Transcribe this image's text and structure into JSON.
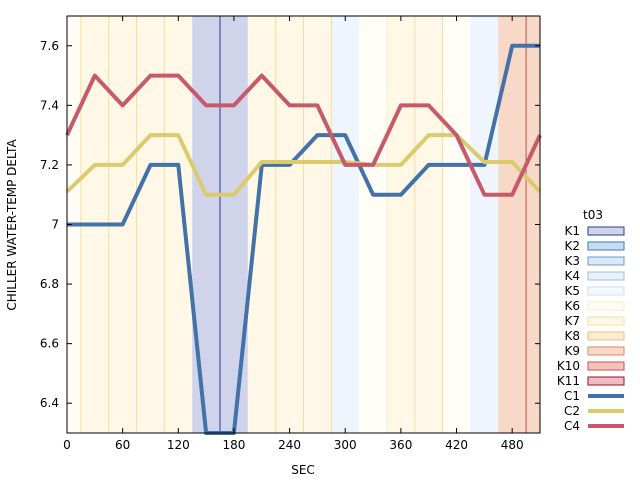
{
  "chart_data": {
    "type": "line",
    "xlabel": "SEC",
    "ylabel": "CHILLER WATER-TEMP DELTA",
    "xlim": [
      0,
      510
    ],
    "ylim": [
      6.3,
      7.7
    ],
    "x_ticks": [
      0,
      60,
      120,
      180,
      240,
      300,
      360,
      420,
      480
    ],
    "y_ticks": [
      {
        "v": 6.4,
        "label": "6.4"
      },
      {
        "v": 6.6,
        "label": "6.6"
      },
      {
        "v": 6.8,
        "label": "6.8"
      },
      {
        "v": 7.0,
        "label": "7"
      },
      {
        "v": 7.2,
        "label": "7.2"
      },
      {
        "v": 7.4,
        "label": "7.4"
      },
      {
        "v": 7.6,
        "label": "7.6"
      }
    ],
    "legend": {
      "title": "t03",
      "placement": "right",
      "bands": [
        {
          "name": "K1",
          "fill": "#cfd4ea",
          "stroke": "#2b3990"
        },
        {
          "name": "K2",
          "fill": "#c6ddf0",
          "stroke": "#3a7ab8"
        },
        {
          "name": "K3",
          "fill": "#dbe9f6",
          "stroke": "#6a9cc8"
        },
        {
          "name": "K4",
          "fill": "#e8f1fb",
          "stroke": "#9cc0e0"
        },
        {
          "name": "K5",
          "fill": "#f5f9fe",
          "stroke": "#cfe0f2"
        },
        {
          "name": "K6",
          "fill": "#fffdf6",
          "stroke": "#f6edcf"
        },
        {
          "name": "K7",
          "fill": "#fff8e6",
          "stroke": "#f3dea2"
        },
        {
          "name": "K8",
          "fill": "#fdeccf",
          "stroke": "#e9c27f"
        },
        {
          "name": "K9",
          "fill": "#f8d8c6",
          "stroke": "#d98a6a"
        },
        {
          "name": "K10",
          "fill": "#f4c4bc",
          "stroke": "#c0504d"
        },
        {
          "name": "K11",
          "fill": "#efbcc6",
          "stroke": "#8b1a2b"
        }
      ],
      "series_names": [
        "C1",
        "C2",
        "C4"
      ]
    },
    "bands": [
      {
        "x0": 0,
        "x1": 15,
        "fill": "#fffdf6",
        "line": "#f3dea2"
      },
      {
        "x0": 15,
        "x1": 45,
        "fill": "#fff8e6",
        "line": "#f3dea2"
      },
      {
        "x0": 45,
        "x1": 75,
        "fill": "#fff8e6",
        "line": "#f3dea2"
      },
      {
        "x0": 75,
        "x1": 105,
        "fill": "#fff8e6",
        "line": "#f3dea2"
      },
      {
        "x0": 105,
        "x1": 135,
        "fill": "#fff8e6",
        "line": "#f3dea2"
      },
      {
        "x0": 135,
        "x1": 195,
        "fill": "#cfd4ea",
        "line": "#2b3990"
      },
      {
        "x0": 195,
        "x1": 285,
        "fill": "#fff8e6",
        "line": "#f3dea2"
      },
      {
        "x0": 285,
        "x1": 315,
        "fill": "#eef5fc",
        "line": "#eef5fc"
      },
      {
        "x0": 315,
        "x1": 345,
        "fill": "#fffdf6",
        "line": "#f6edcf"
      },
      {
        "x0": 345,
        "x1": 405,
        "fill": "#fff8e6",
        "line": "#f3dea2"
      },
      {
        "x0": 405,
        "x1": 435,
        "fill": "#fffdf6",
        "line": "#f6edcf"
      },
      {
        "x0": 435,
        "x1": 465,
        "fill": "#eef5fc",
        "line": "#eef5fc"
      },
      {
        "x0": 465,
        "x1": 510,
        "fill": "#f8d8c6",
        "line": "#c0504d"
      }
    ],
    "band_lines": [
      15,
      45,
      75,
      105,
      165,
      225,
      255,
      285,
      345,
      375,
      405,
      495
    ],
    "series": [
      {
        "name": "C1",
        "color": "#4272a8",
        "x": [
          0,
          30,
          60,
          90,
          120,
          150,
          180,
          210,
          240,
          270,
          300,
          330,
          360,
          390,
          420,
          450,
          480,
          510
        ],
        "values": [
          7.0,
          7.0,
          7.0,
          7.2,
          7.2,
          6.3,
          6.3,
          7.2,
          7.2,
          7.3,
          7.3,
          7.1,
          7.1,
          7.2,
          7.2,
          7.2,
          7.6,
          7.6
        ]
      },
      {
        "name": "C2",
        "color": "#dccb6d",
        "x": [
          0,
          30,
          60,
          90,
          120,
          150,
          180,
          210,
          240,
          270,
          300,
          330,
          360,
          390,
          420,
          450,
          480,
          510
        ],
        "values": [
          7.11,
          7.2,
          7.2,
          7.3,
          7.3,
          7.1,
          7.1,
          7.21,
          7.21,
          7.21,
          7.21,
          7.2,
          7.2,
          7.3,
          7.3,
          7.21,
          7.21,
          7.11
        ]
      },
      {
        "name": "C4",
        "color": "#c65a6a",
        "x": [
          0,
          30,
          60,
          90,
          120,
          150,
          180,
          210,
          240,
          270,
          300,
          330,
          360,
          390,
          420,
          450,
          480,
          510
        ],
        "values": [
          7.3,
          7.5,
          7.4,
          7.5,
          7.5,
          7.4,
          7.4,
          7.5,
          7.4,
          7.4,
          7.2,
          7.2,
          7.4,
          7.4,
          7.3,
          7.1,
          7.1,
          7.3
        ]
      }
    ]
  }
}
